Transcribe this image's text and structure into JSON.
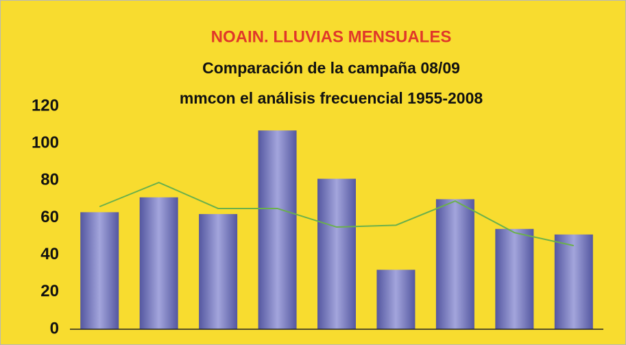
{
  "chart_data": {
    "type": "bar",
    "title": "NOAIN. LLUVIAS MENSUALES",
    "subtitle": "Comparación de la campaña 08/09",
    "subtitle2": "mmcon el análisis frecuencial 1955-2008",
    "categories": [
      null,
      null,
      null,
      null,
      null,
      null,
      null,
      null,
      null
    ],
    "series": [
      {
        "type": "bar",
        "color": "#5457a0",
        "values": [
          63,
          71,
          62,
          107,
          81,
          32,
          70,
          54,
          51
        ]
      },
      {
        "type": "line",
        "color": "#6ab04c",
        "values": [
          66,
          79,
          65,
          65,
          55,
          56,
          69,
          52,
          45
        ]
      }
    ],
    "ylim": [
      0,
      120
    ],
    "yticks": [
      0,
      20,
      40,
      60,
      80,
      100,
      120
    ],
    "grid": false
  }
}
